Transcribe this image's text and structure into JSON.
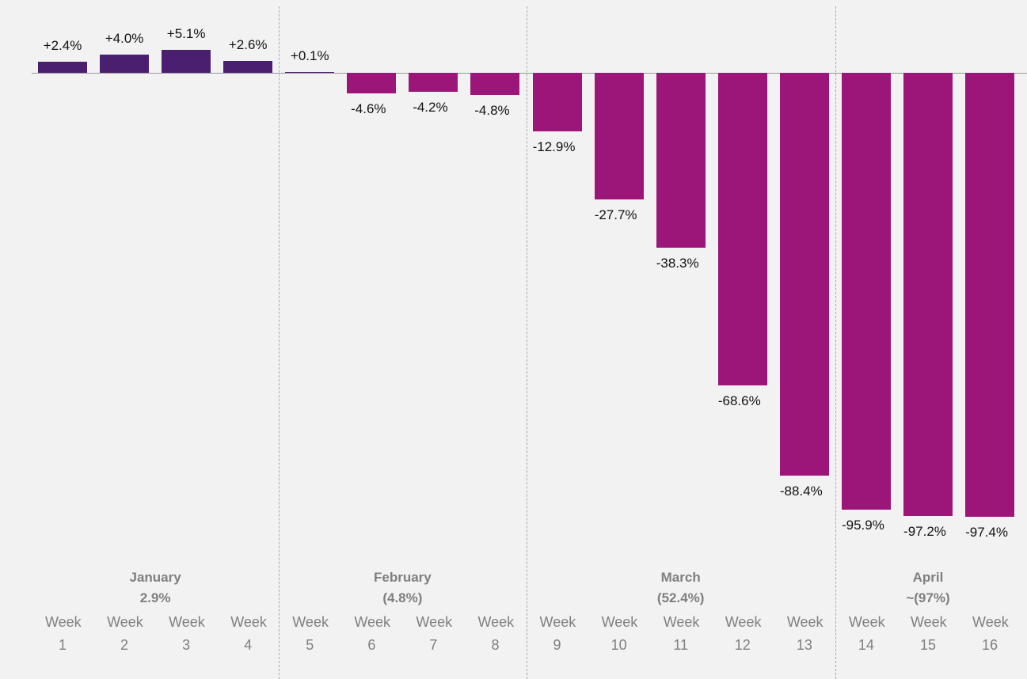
{
  "chart_data": {
    "type": "bar",
    "categories": [
      "Week 1",
      "Week 2",
      "Week 3",
      "Week 4",
      "Week 5",
      "Week 6",
      "Week 7",
      "Week 8",
      "Week 9",
      "Week 10",
      "Week 11",
      "Week 12",
      "Week 13",
      "Week 14",
      "Week 15",
      "Week 16"
    ],
    "values": [
      2.4,
      4.0,
      5.1,
      2.6,
      0.1,
      -4.6,
      -4.2,
      -4.8,
      -12.9,
      -27.7,
      -38.3,
      -68.6,
      -88.4,
      -95.9,
      -97.2,
      -97.4
    ],
    "value_labels": [
      "+2.4%",
      "+4.0%",
      "+5.1%",
      "+2.6%",
      "+0.1%",
      "-4.6%",
      "-4.2%",
      "-4.8%",
      "-12.9%",
      "-27.7%",
      "-38.3%",
      "-68.6%",
      "-88.4%",
      "-95.9%",
      "-97.2%",
      "-97.4%"
    ],
    "positive_color": "#4b1f6f",
    "negative_color": "#9c1579",
    "groups": [
      {
        "name": "January",
        "summary": "2.9%",
        "weeks": 4
      },
      {
        "name": "February",
        "summary": "(4.8%)",
        "weeks": 4
      },
      {
        "name": "March",
        "summary": "(52.4%)",
        "weeks": 5
      },
      {
        "name": "April",
        "summary": "~(97%)",
        "weeks": 3
      }
    ]
  }
}
